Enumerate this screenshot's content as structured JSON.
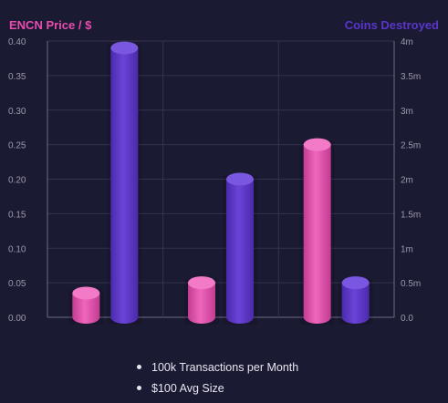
{
  "colors": {
    "price": "#e84cae",
    "coins": "#5b35c9",
    "background": "#1b1a33",
    "grid": "#34334f",
    "tick_text": "#9a99ad",
    "note_text": "#e6e6f0"
  },
  "chart_data": {
    "type": "bar",
    "left_axis_title": "ENCN Price / $",
    "right_axis_title": "Coins Destroyed",
    "left_axis": {
      "range": [
        0,
        0.4
      ],
      "ticks": [
        "0.00",
        "0.05",
        "0.10",
        "0.15",
        "0.20",
        "0.25",
        "0.30",
        "0.35",
        "0.40"
      ]
    },
    "right_axis": {
      "range": [
        0,
        4000000
      ],
      "ticks": [
        "0.0",
        "0.5m",
        "1m",
        "1.5m",
        "2m",
        "2.5m",
        "3m",
        "3.5m",
        "4m"
      ]
    },
    "groups": 3,
    "series": [
      {
        "name": "ENCN Price / $",
        "axis": "left",
        "values": [
          0.035,
          0.05,
          0.25
        ]
      },
      {
        "name": "Coins Destroyed",
        "axis": "right",
        "values": [
          3900000,
          2000000,
          500000
        ]
      }
    ],
    "grid": true,
    "style": "3d-cylinder"
  },
  "notes": [
    "100k Transactions per Month",
    "$100 Avg Size"
  ]
}
